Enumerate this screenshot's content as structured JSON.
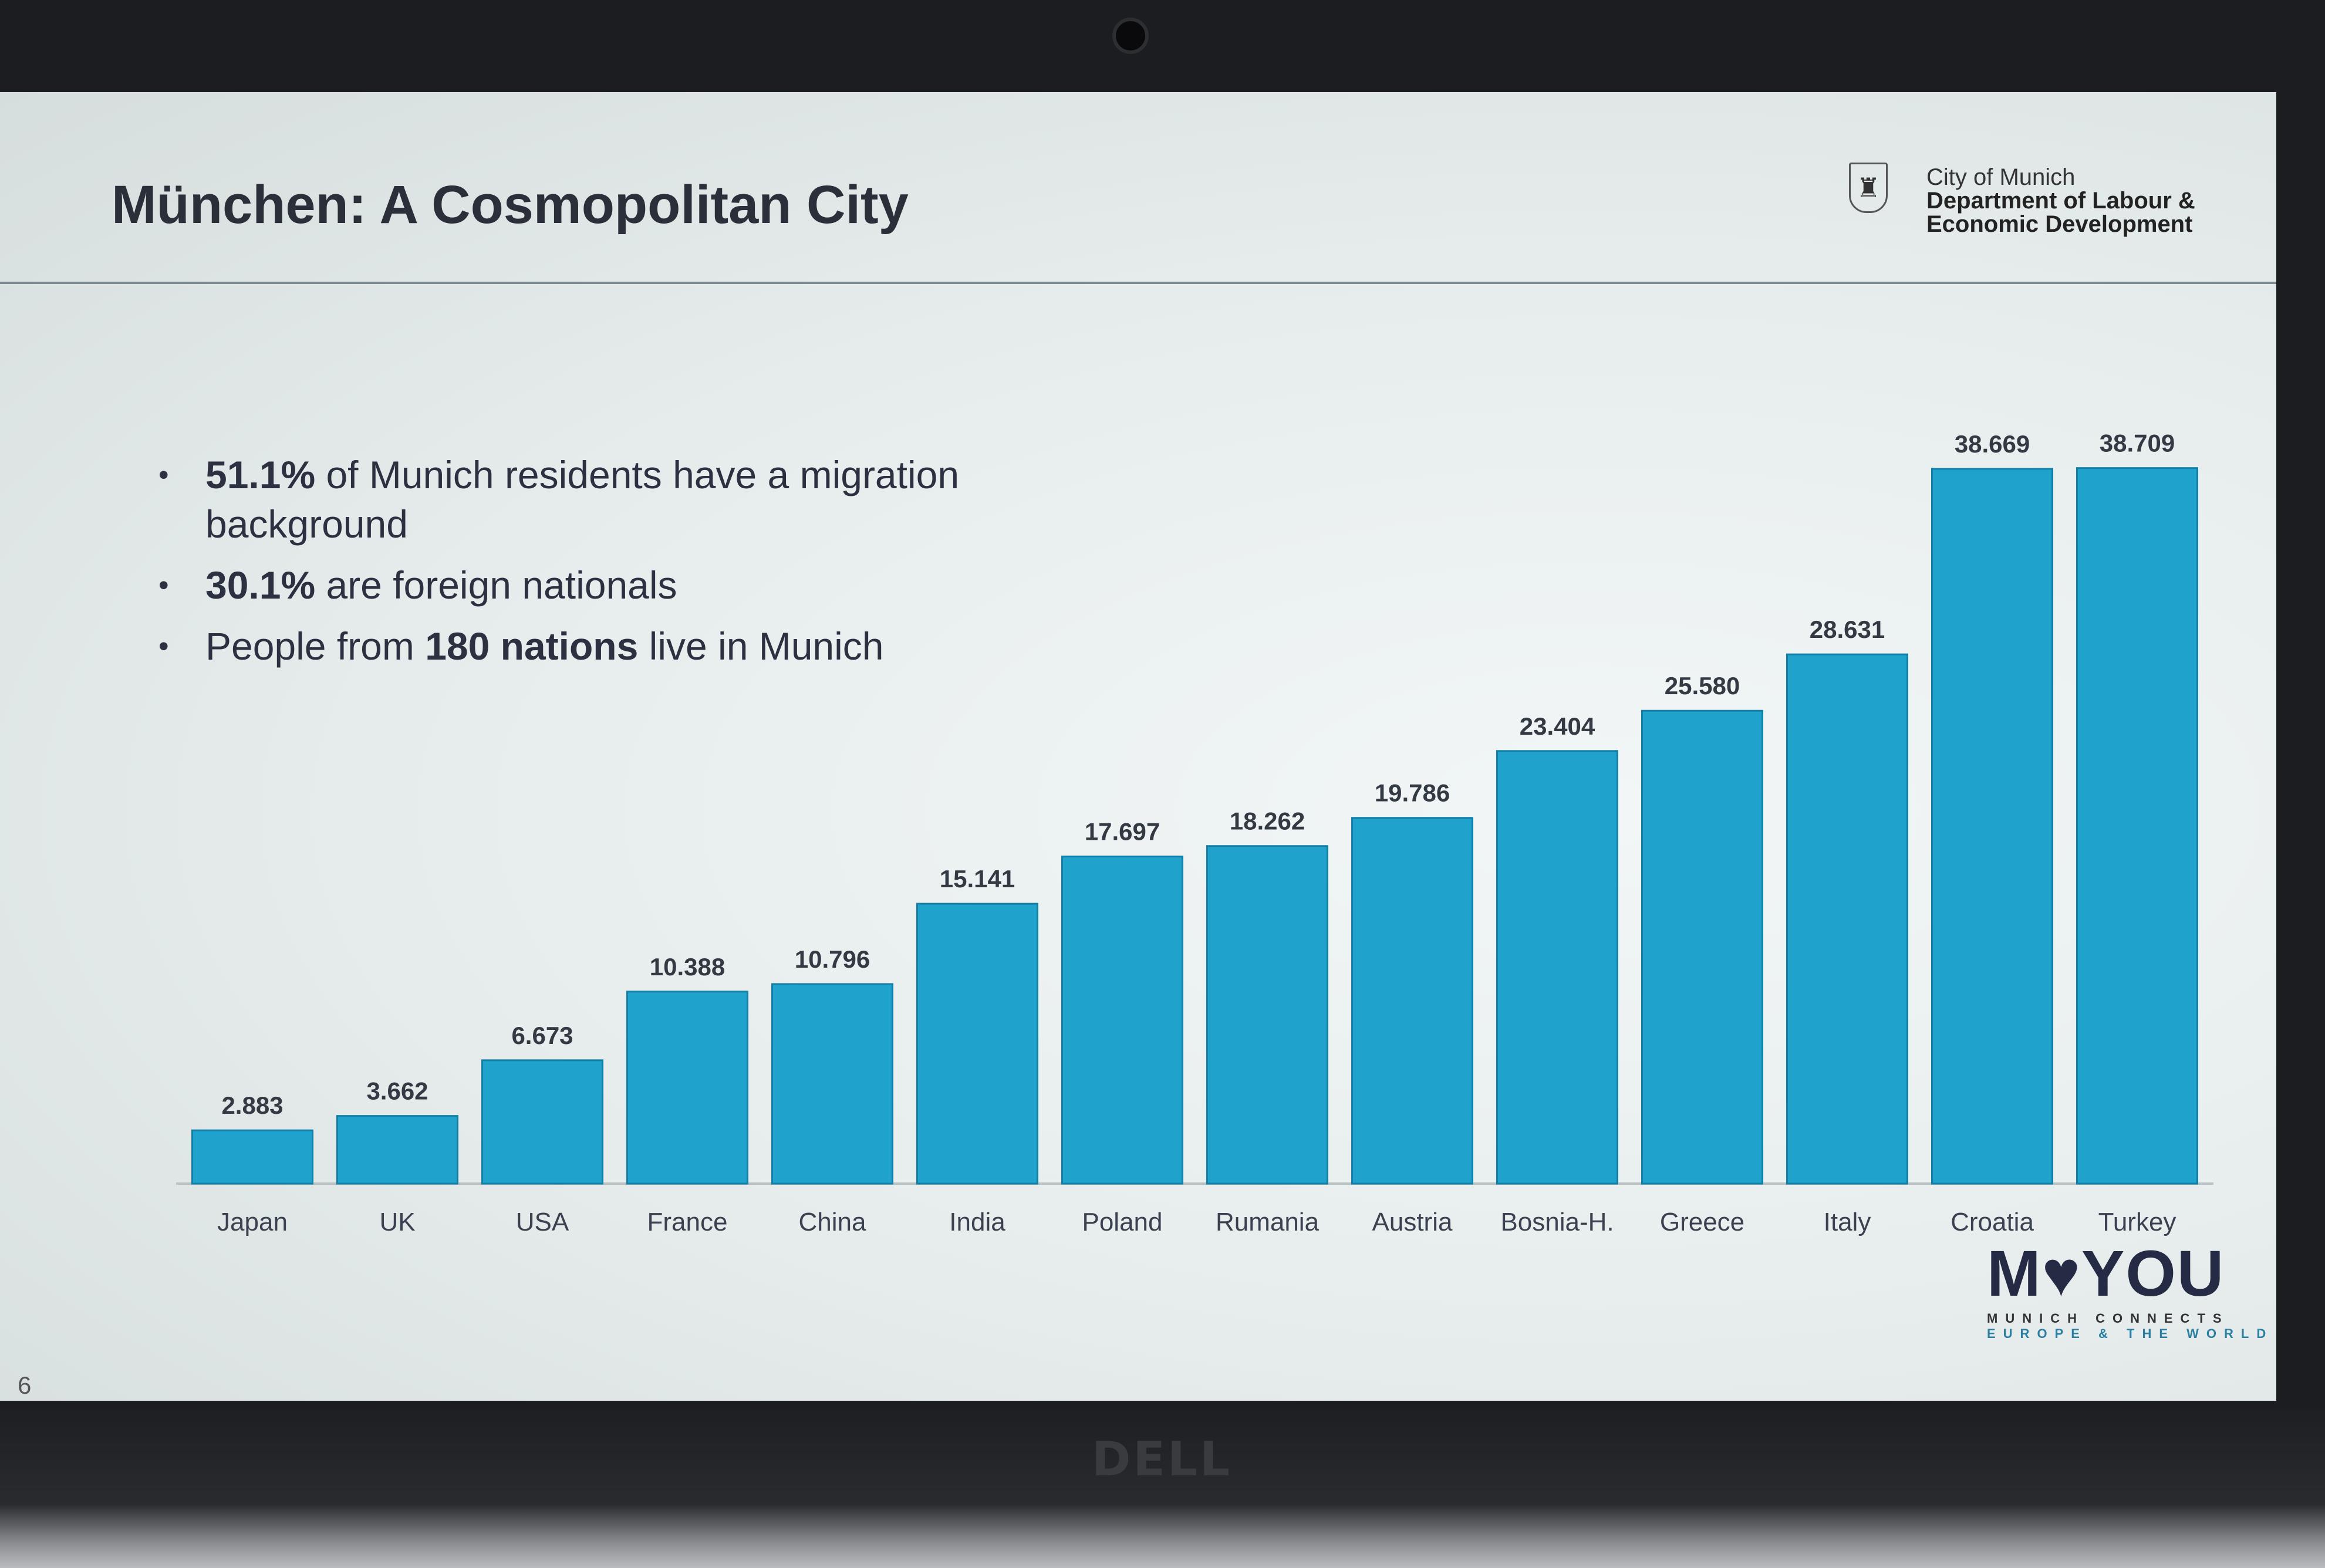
{
  "slide": {
    "title": "München: A Cosmopolitan City",
    "org": {
      "line1": "City of Munich",
      "line2": "Department of Labour &",
      "line3": "Economic Development"
    },
    "bullets": [
      {
        "bold": "51.1%",
        "text": " of Munich residents have a migration background"
      },
      {
        "bold": "30.1%",
        "text": " are foreign nationals"
      },
      {
        "pre": "People from ",
        "bold": "180 nations",
        "text": " live in Munich"
      }
    ],
    "page_number": "6",
    "logo": {
      "main": "M♥YOU",
      "sub1": "MUNICH CONNECTS",
      "sub2": "EUROPE & THE WORLD"
    }
  },
  "device": {
    "brand": "DELL"
  },
  "chart_data": {
    "type": "bar",
    "title": "",
    "xlabel": "",
    "ylabel": "",
    "categories": [
      "Japan",
      "UK",
      "USA",
      "France",
      "China",
      "India",
      "Poland",
      "Rumania",
      "Austria",
      "Bosnia-H.",
      "Greece",
      "Italy",
      "Croatia",
      "Turkey"
    ],
    "values": [
      2883,
      3662,
      6673,
      10388,
      10796,
      15141,
      17697,
      18262,
      19786,
      23404,
      25580,
      28631,
      38669,
      38709
    ],
    "value_labels": [
      "2.883",
      "3.662",
      "6.673",
      "10.388",
      "10.796",
      "15.141",
      "17.697",
      "18.262",
      "19.786",
      "23.404",
      "25.580",
      "28.631",
      "38.669",
      "38.709"
    ],
    "ylim": [
      0,
      40000
    ],
    "grid": false,
    "bar_color": "#1fa3cc"
  }
}
